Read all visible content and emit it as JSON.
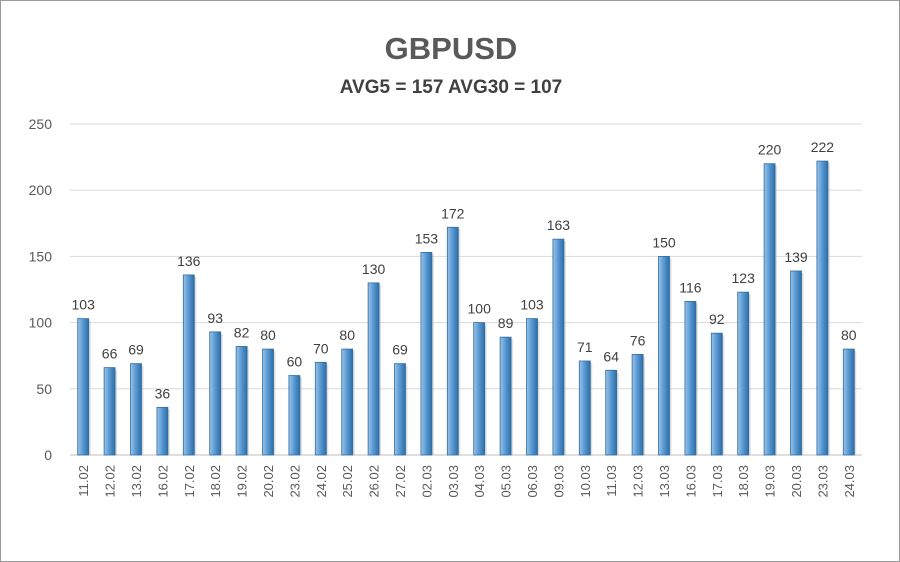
{
  "chart_data": {
    "type": "bar",
    "title": "GBPUSD",
    "subtitle": "AVG5 = 157 AVG30 = 107",
    "xlabel": "",
    "ylabel": "",
    "ylim": [
      0,
      250
    ],
    "yticks": [
      0,
      50,
      100,
      150,
      200,
      250
    ],
    "grid": true,
    "categories": [
      "11.02",
      "12.02",
      "13.02",
      "16.02",
      "17.02",
      "18.02",
      "19.02",
      "20.02",
      "23.02",
      "24.02",
      "25.02",
      "26.02",
      "27.02",
      "02.03",
      "03.03",
      "04.03",
      "05.03",
      "06.03",
      "09.03",
      "10.03",
      "11.03",
      "12.03",
      "13.03",
      "16.03",
      "17.03",
      "18.03",
      "19.03",
      "20.03",
      "23.03",
      "24.03"
    ],
    "values": [
      103,
      66,
      69,
      36,
      136,
      93,
      82,
      80,
      60,
      70,
      80,
      130,
      69,
      153,
      172,
      100,
      89,
      103,
      163,
      71,
      64,
      76,
      150,
      116,
      92,
      123,
      220,
      139,
      222,
      80
    ],
    "colors": {
      "bar_light": "#9dc3e6",
      "bar_mid": "#5b9bd5",
      "bar_dark": "#2e6da4",
      "grid": "#d9d9d9",
      "axis": "#bfbfbf",
      "label": "#404040",
      "tick": "#595959"
    }
  }
}
